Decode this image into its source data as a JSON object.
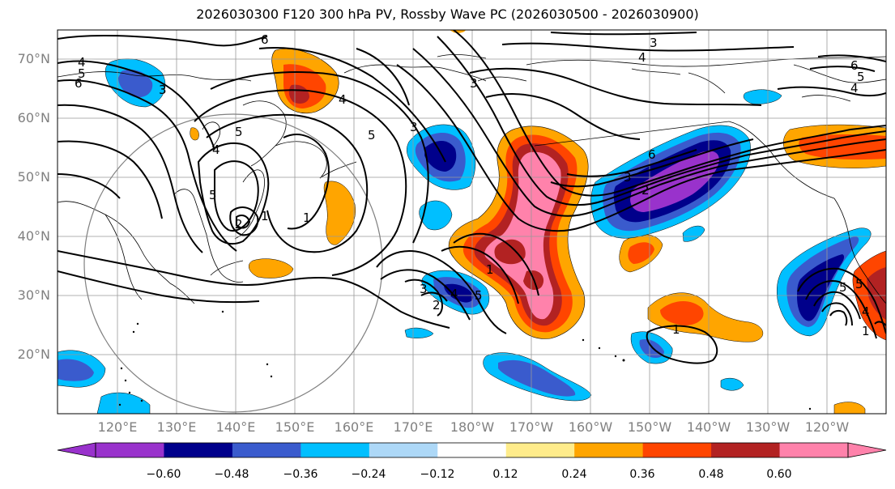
{
  "title": "2026030300 F120 300 hPa PV, Rossby Wave PC (2026030500 - 2026030900)",
  "lat_labels": [
    "70°N",
    "60°N",
    "50°N",
    "40°N",
    "30°N",
    "20°N"
  ],
  "lon_labels": [
    "120°E",
    "130°E",
    "140°E",
    "150°E",
    "160°E",
    "170°E",
    "180°W",
    "170°W",
    "160°W",
    "150°W",
    "140°W",
    "130°W",
    "120°W"
  ],
  "colorbar": {
    "colors": [
      "#9932CC",
      "#00008B",
      "#3A5BCD",
      "#00BFFF",
      "#ADD8F7",
      "#FFFFFF",
      "#FFEC8B",
      "#FFA500",
      "#FF4500",
      "#B22222",
      "#FF82AB"
    ],
    "tick_labels": [
      "−0.60",
      "−0.48",
      "−0.36",
      "−0.24",
      "−0.12",
      "0.12",
      "0.24",
      "0.36",
      "0.48",
      "0.60"
    ]
  },
  "contour_labels": [
    "6",
    "3",
    "4",
    "4",
    "5",
    "6",
    "3",
    "5",
    "4",
    "3",
    "5",
    "2",
    "1",
    "1",
    "2",
    "3",
    "4",
    "5",
    "6",
    "3",
    "2",
    "1",
    "5",
    "5",
    "4",
    "1",
    "6",
    "5",
    "4",
    "3",
    "4",
    "5",
    "1"
  ]
}
